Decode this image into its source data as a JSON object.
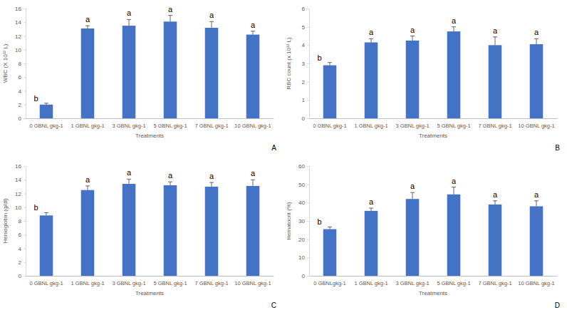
{
  "chart_data": [
    {
      "type": "bar",
      "panel_label": "A",
      "x_label": "Treatments",
      "y_label": "WBC (X 10¹² L)",
      "categories": [
        "0 GBNL gkg-1",
        "1 GBNL gkg-1",
        "3 GBNL gkg-1",
        "5 GBNL gkg-1",
        "7 GBNL gkg-1",
        "10 GBNL gkg-1"
      ],
      "values": [
        2.0,
        13.1,
        13.5,
        14.1,
        13.2,
        12.2
      ],
      "errors": [
        0.2,
        0.4,
        0.9,
        0.9,
        0.9,
        0.5
      ],
      "annotations": [
        "b",
        "a",
        "a",
        "a",
        "a",
        "a"
      ],
      "color": "#4472c4",
      "grid": false,
      "ylim": [
        0,
        16
      ],
      "yticks": [
        0,
        2,
        4,
        6,
        8,
        10,
        12,
        14,
        16
      ]
    },
    {
      "type": "bar",
      "panel_label": "B",
      "x_label": "Treatments",
      "y_label": "RBC count (x 10¹² L)",
      "categories": [
        "0 GBNL gkg-1",
        "1 GBNL gkg-1",
        "3 GBNL gkg-1",
        "5 GBNL gkg-1",
        "7 GBNL gkg-1",
        "10 GBNL gkg-1"
      ],
      "values": [
        2.9,
        4.15,
        4.25,
        4.75,
        4.0,
        4.05
      ],
      "errors": [
        0.15,
        0.2,
        0.25,
        0.25,
        0.45,
        0.3
      ],
      "annotations": [
        "b",
        "a",
        "a",
        "a",
        "a",
        "a"
      ],
      "color": "#4472c4",
      "grid": false,
      "ylim": [
        0,
        6
      ],
      "yticks": [
        0,
        1,
        2,
        3,
        4,
        5,
        6
      ]
    },
    {
      "type": "bar",
      "panel_label": "C",
      "x_label": "Treatments",
      "y_label": "Hemoglobin (g/dl)",
      "categories": [
        "0 GBNL gkg-1",
        "1 GBNL gkg-1",
        "3 GBNL gkg-1",
        "5 GBNL gkg-1",
        "7 GBNL gkg-1",
        "10 GBNL gkg-1"
      ],
      "values": [
        8.8,
        12.5,
        13.4,
        13.2,
        13.0,
        13.1
      ],
      "errors": [
        0.4,
        0.6,
        0.7,
        0.5,
        0.6,
        0.9
      ],
      "annotations": [
        "b",
        "a",
        "a",
        "a",
        "a",
        "a"
      ],
      "color": "#4472c4",
      "grid": false,
      "ylim": [
        0,
        16
      ],
      "yticks": [
        0,
        2,
        4,
        6,
        8,
        10,
        12,
        14,
        16
      ]
    },
    {
      "type": "bar",
      "panel_label": "D",
      "x_label": "Treatments",
      "y_label": "Hematocrit (%)",
      "categories": [
        "0 GBNLgkg-1",
        "1 GBNL gkg-1",
        "3 GBNL gkg-1",
        "5 GBNL gkg-1",
        "7 GBNL gkg-1",
        "10 GBNL gkg-1"
      ],
      "values": [
        25.5,
        35.5,
        42.0,
        44.5,
        39.0,
        38.0
      ],
      "errors": [
        1.2,
        1.5,
        3.5,
        4.0,
        2.0,
        3.0
      ],
      "annotations": [
        "b",
        "a",
        "a",
        "a",
        "a",
        "a"
      ],
      "color": "#4472c4",
      "grid": false,
      "ylim": [
        0,
        60
      ],
      "yticks": [
        0,
        10,
        20,
        30,
        40,
        50,
        60
      ]
    }
  ]
}
